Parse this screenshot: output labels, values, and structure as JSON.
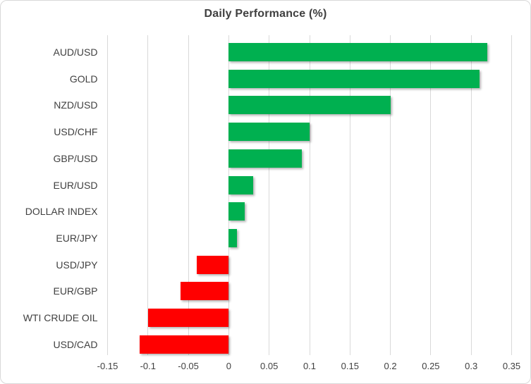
{
  "title": "Daily Performance (%)",
  "colors": {
    "positive": "#00B050",
    "negative": "#FF0000",
    "gridline": "#D9D9D9",
    "text": "#404040",
    "title_text": "#3F3F3F",
    "border": "#D9D9D9"
  },
  "chart_data": {
    "type": "bar",
    "orientation": "horizontal",
    "title": "Daily Performance (%)",
    "categories": [
      "AUD/USD",
      "GOLD",
      "NZD/USD",
      "USD/CHF",
      "GBP/USD",
      "EUR/USD",
      "DOLLAR INDEX",
      "EUR/JPY",
      "USD/JPY",
      "EUR/GBP",
      "WTI CRUDE OIL",
      "USD/CAD"
    ],
    "values": [
      0.32,
      0.31,
      0.2,
      0.1,
      0.09,
      0.03,
      0.02,
      0.01,
      -0.04,
      -0.06,
      -0.1,
      -0.11
    ],
    "xlabel": "",
    "ylabel": "",
    "xlim": [
      -0.15,
      0.35
    ],
    "x_ticks": [
      -0.15,
      -0.1,
      -0.05,
      0,
      0.05,
      0.1,
      0.15,
      0.2,
      0.25,
      0.3,
      0.35
    ],
    "x_tick_labels": [
      "-0.15",
      "-0.1",
      "-0.05",
      "0",
      "0.05",
      "0.1",
      "0.15",
      "0.2",
      "0.25",
      "0.3",
      "0.35"
    ],
    "grid": true,
    "legend": "none",
    "positive_color": "#00B050",
    "negative_color": "#FF0000"
  }
}
